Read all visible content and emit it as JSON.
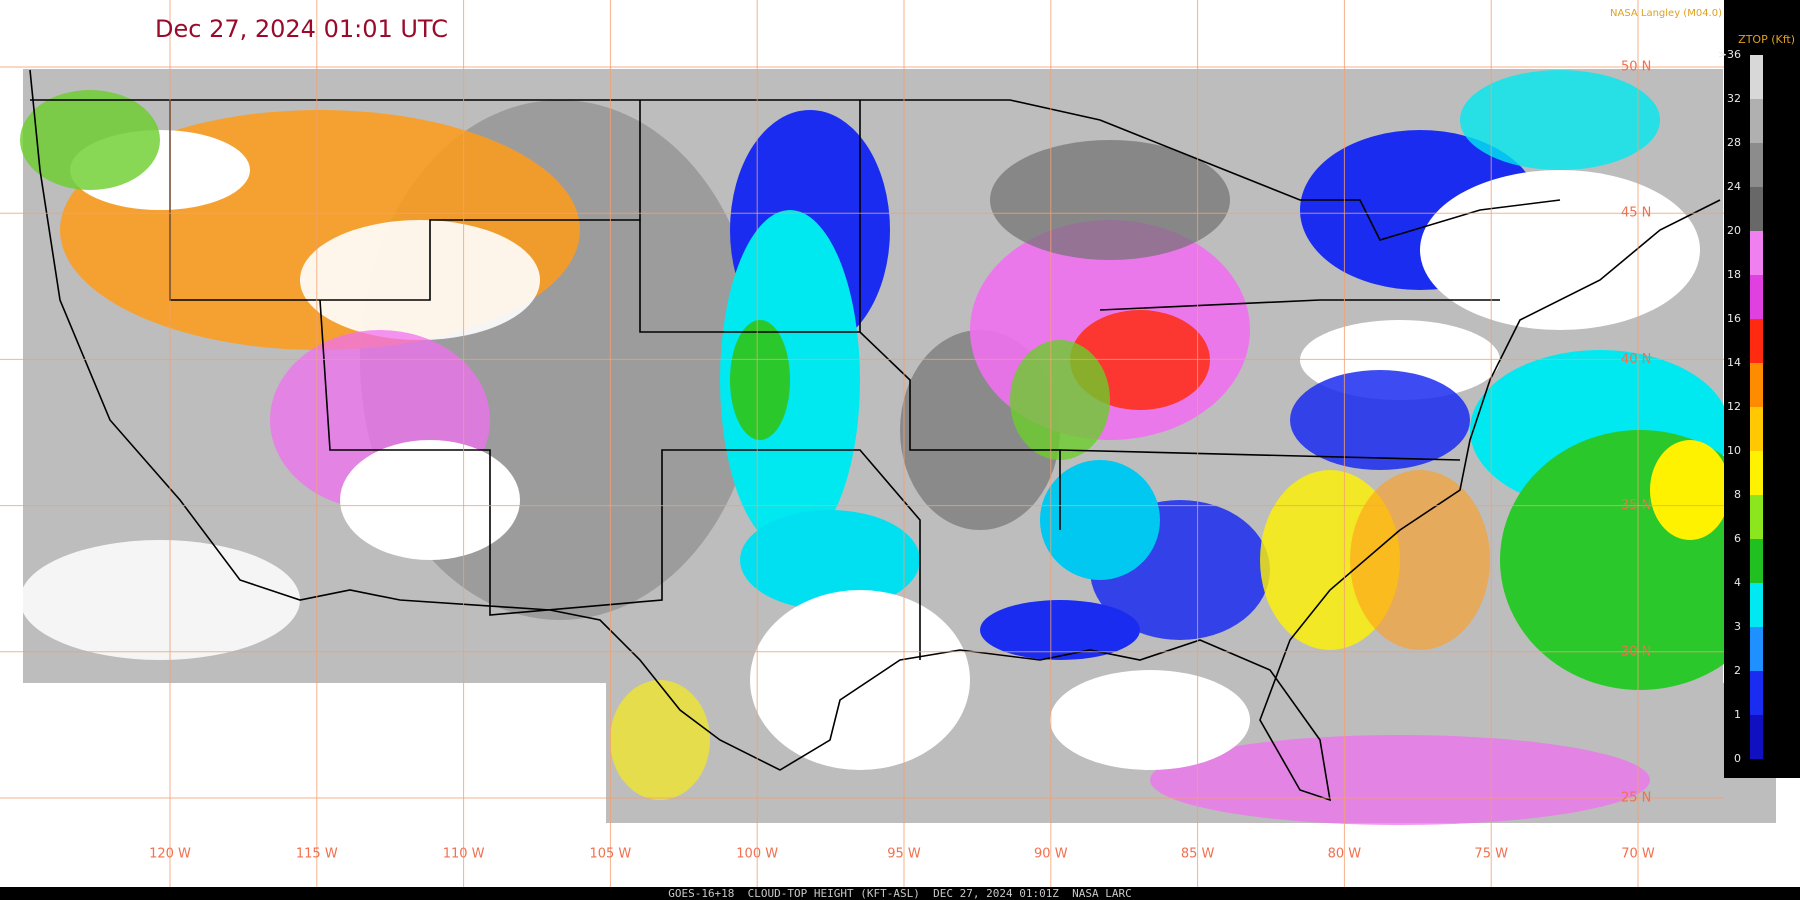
{
  "header": {
    "title": "Dec 27, 2024 01:01 UTC",
    "credit": "NASA Langley (M04.0)"
  },
  "legend": {
    "title": "ZTOP (Kft)",
    "labels": [
      ">36",
      "32",
      "28",
      "24",
      "20",
      "18",
      "16",
      "14",
      "12",
      "10",
      "8",
      "6",
      "4",
      "3",
      "2",
      "1",
      "0"
    ]
  },
  "map": {
    "lat_labels": [
      "50 N",
      "45 N",
      "40 N",
      "35 N",
      "30 N",
      "25 N"
    ],
    "lon_labels": [
      "120 W",
      "115 W",
      "110 W",
      "105 W",
      "100 W",
      "95 W",
      "90 W",
      "85 W",
      "80 W",
      "75 W",
      "70 W"
    ]
  },
  "footer": {
    "caption": "GOES-16+18  CLOUD-TOP HEIGHT (KFT-ASL)  DEC 27, 2024 01:01Z  NASA LARC"
  }
}
